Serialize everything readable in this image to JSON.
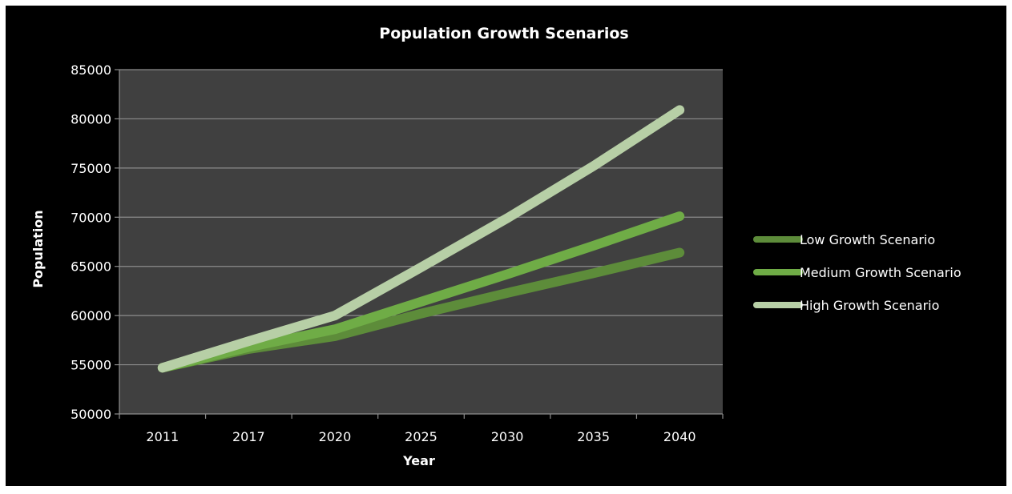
{
  "chart_data": {
    "type": "line",
    "title": "Population Growth Scenarios",
    "xlabel": "Year",
    "ylabel": "Population",
    "categories": [
      "2011",
      "2017",
      "2020",
      "2025",
      "2030",
      "2035",
      "2040"
    ],
    "ylim": [
      50000,
      85000
    ],
    "yticks": [
      50000,
      55000,
      60000,
      65000,
      70000,
      75000,
      80000,
      85000
    ],
    "grid": true,
    "legend_position": "right",
    "series": [
      {
        "name": "Low Growth Scenario",
        "color": "#5d8c3a",
        "values": [
          54700,
          56600,
          57900,
          60200,
          62300,
          64300,
          66400
        ]
      },
      {
        "name": "Medium Growth Scenario",
        "color": "#6fac46",
        "values": [
          54700,
          56800,
          58600,
          61400,
          64200,
          67100,
          70100
        ]
      },
      {
        "name": "High Growth Scenario",
        "color": "#b7cfa6",
        "values": [
          54700,
          57400,
          60000,
          64900,
          69900,
          75200,
          80900
        ]
      }
    ]
  }
}
